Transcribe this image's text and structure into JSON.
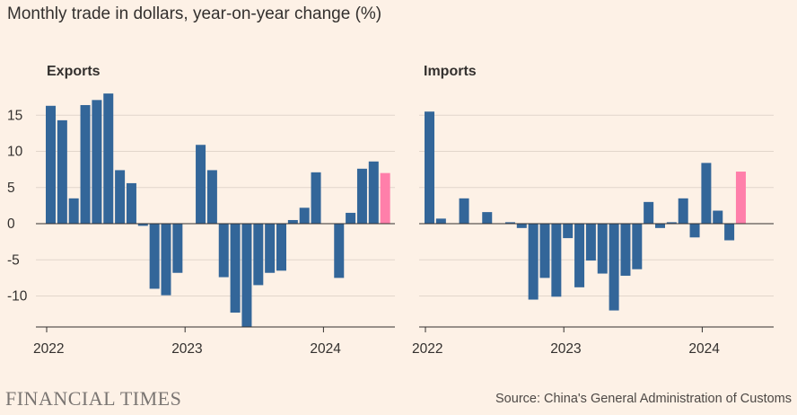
{
  "title": "Monthly trade in dollars, year-on-year change (%)",
  "footer": {
    "brand": "FINANCIAL TIMES",
    "source": "Source: China's General Administration of Customs"
  },
  "colors": {
    "bar": "#336699",
    "highlight": "#ff7faa",
    "background": "#fdf1e6",
    "grid": "#e2d6cb",
    "text": "#33302e"
  },
  "chart_data": [
    {
      "type": "bar",
      "title": "Exports",
      "xlabel": "",
      "ylabel": "",
      "ylim": [
        -14.5,
        19
      ],
      "yticks": [
        15,
        10,
        5,
        0,
        -5,
        -10
      ],
      "ytick_labels": [
        "15",
        "10",
        "5",
        "0",
        "-5",
        "-10"
      ],
      "xtick_labels": [
        "2022",
        "2023",
        "2024"
      ],
      "xtick_index": [
        0,
        12,
        24
      ],
      "categories": [
        "Jan 2022",
        "Feb 2022",
        "Mar 2022",
        "Apr 2022",
        "May 2022",
        "Jun 2022",
        "Jul 2022",
        "Aug 2022",
        "Sep 2022",
        "Oct 2022",
        "Nov 2022",
        "Dec 2022",
        "Jan 2023",
        "Feb 2023",
        "Mar 2023",
        "Apr 2023",
        "May 2023",
        "Jun 2023",
        "Jul 2023",
        "Aug 2023",
        "Sep 2023",
        "Oct 2023",
        "Nov 2023",
        "Dec 2023",
        "Jan 2024",
        "Feb 2024",
        "Mar 2024",
        "Apr 2024",
        "May 2024",
        "Jun 2024"
      ],
      "values": [
        16.3,
        14.3,
        3.5,
        16.4,
        17.1,
        18.0,
        7.4,
        5.6,
        -0.3,
        -9.0,
        -9.9,
        -6.8,
        null,
        10.9,
        7.4,
        -7.4,
        -12.3,
        -14.3,
        -8.5,
        -6.8,
        -6.5,
        0.5,
        2.2,
        7.1,
        null,
        -7.5,
        1.5,
        7.6,
        8.6,
        7.0
      ],
      "highlight_index": 29
    },
    {
      "type": "bar",
      "title": "Imports",
      "xlabel": "",
      "ylabel": "",
      "ylim": [
        -14.5,
        19
      ],
      "xtick_labels": [
        "2022",
        "2023",
        "2024"
      ],
      "xtick_index": [
        0,
        12,
        24
      ],
      "categories": [
        "Jan 2022",
        "Feb 2022",
        "Mar 2022",
        "Apr 2022",
        "May 2022",
        "Jun 2022",
        "Jul 2022",
        "Aug 2022",
        "Sep 2022",
        "Oct 2022",
        "Nov 2022",
        "Dec 2022",
        "Jan 2023",
        "Feb 2023",
        "Mar 2023",
        "Apr 2023",
        "May 2023",
        "Jun 2023",
        "Jul 2023",
        "Aug 2023",
        "Sep 2023",
        "Oct 2023",
        "Nov 2023",
        "Dec 2023",
        "Jan 2024",
        "Feb 2024",
        "Mar 2024",
        "Apr 2024",
        "May 2024",
        "Jun 2024"
      ],
      "values": [
        15.5,
        0.7,
        0,
        3.5,
        0,
        1.6,
        0,
        0.2,
        -0.6,
        -10.5,
        -7.5,
        -10.1,
        -2.0,
        -8.8,
        -5.1,
        -6.9,
        -12.0,
        -7.2,
        -6.3,
        3.0,
        -0.6,
        0.2,
        3.5,
        -1.9,
        8.4,
        1.8,
        -2.3,
        7.2,
        null,
        null
      ],
      "highlight_index": 27
    }
  ]
}
